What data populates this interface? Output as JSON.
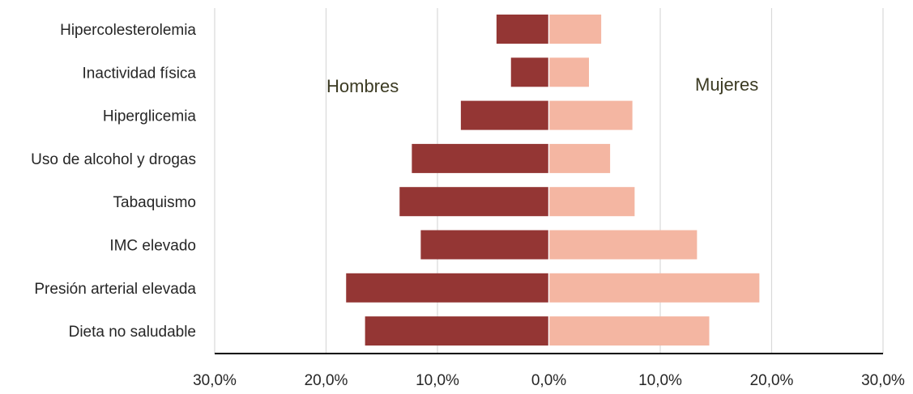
{
  "chart_data": {
    "type": "bar",
    "orientation": "horizontal-diverging",
    "title": "",
    "xlabel": "",
    "ylabel": "",
    "categories": [
      "Hipercolesterolemia",
      "Inactividad física",
      "Hiperglicemia",
      "Uso de alcohol y drogas",
      "Tabaquismo",
      "IMC elevado",
      "Presión arterial elevada",
      "Dieta no saludable"
    ],
    "series": [
      {
        "name": "Hombres",
        "side": "left",
        "color": "#943634",
        "values": [
          4.7,
          3.4,
          7.9,
          12.3,
          13.4,
          11.5,
          18.2,
          16.5
        ]
      },
      {
        "name": "Mujeres",
        "side": "right",
        "color": "#f4b6a2",
        "values": [
          4.7,
          3.6,
          7.5,
          5.5,
          7.7,
          13.3,
          18.9,
          14.4
        ]
      }
    ],
    "xlim": [
      -30,
      30
    ],
    "x_ticks": [
      {
        "value": -30,
        "label": "30,0%"
      },
      {
        "value": -20,
        "label": "20,0%"
      },
      {
        "value": -10,
        "label": "10,0%"
      },
      {
        "value": 0,
        "label": "0,0%"
      },
      {
        "value": 10,
        "label": "10,0%"
      },
      {
        "value": 20,
        "label": "20,0%"
      },
      {
        "value": 30,
        "label": "30,0%"
      }
    ],
    "grid": "vertical",
    "grid_color": "#d9d9d9",
    "axis_color": "#000000",
    "center_line_color": "#ffffff"
  }
}
